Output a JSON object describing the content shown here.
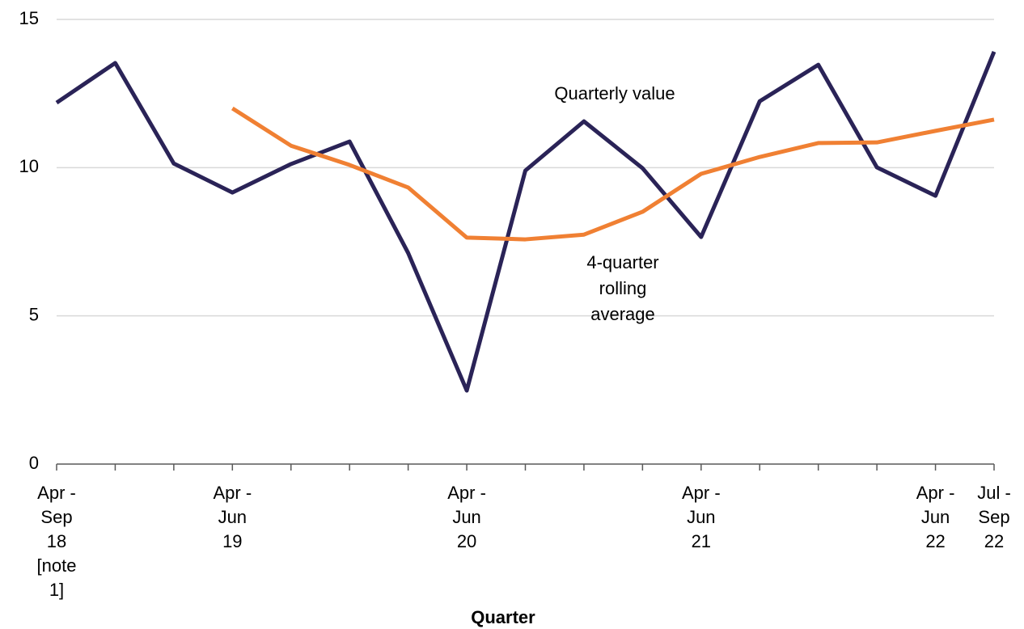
{
  "chart_data": {
    "type": "line",
    "x_label": "Quarter",
    "categories": [
      "Apr - Sep 18 [note 1]",
      null,
      null,
      "Apr - Jun 19",
      null,
      null,
      null,
      "Apr - Jun 20",
      null,
      null,
      null,
      "Apr - Jun 21",
      null,
      null,
      null,
      "Apr - Jun 22",
      "Jul - Sep 22"
    ],
    "series": [
      {
        "name": "Quarterly value",
        "color": "#2a2357",
        "values": [
          12.19,
          13.53,
          10.14,
          9.16,
          10.12,
          10.88,
          7.12,
          2.48,
          9.9,
          11.56,
          9.98,
          7.66,
          12.24,
          13.47,
          10.01,
          9.05,
          13.91
        ]
      },
      {
        "name": "4-quarter rolling average",
        "color": "#f08033",
        "values": [
          null,
          null,
          null,
          12.0,
          10.74,
          10.09,
          9.33,
          7.64,
          7.58,
          7.74,
          8.51,
          9.79,
          10.36,
          10.83,
          10.85,
          11.24,
          11.62
        ]
      }
    ],
    "ylim": [
      0,
      15
    ],
    "yticks": [
      0,
      5,
      10,
      15
    ],
    "grid": true
  }
}
